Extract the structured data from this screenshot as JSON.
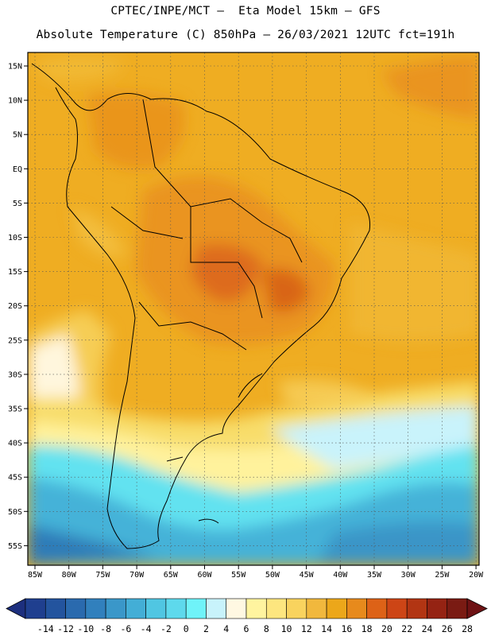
{
  "header": {
    "line1": "CPTEC/INPE/MCT –  Eta Model 15km – GFS",
    "line2": "Absolute Temperature (C) 850hPa – 26/03/2021 12UTC fct=191h"
  },
  "map": {
    "lat_labels": [
      "15N",
      "10N",
      "5N",
      "EQ",
      "5S",
      "10S",
      "15S",
      "20S",
      "25S",
      "30S",
      "35S",
      "40S",
      "45S",
      "50S",
      "55S"
    ],
    "lon_labels": [
      "85W",
      "80W",
      "75W",
      "70W",
      "65W",
      "60W",
      "55W",
      "50W",
      "45W",
      "40W",
      "35W",
      "30W",
      "25W",
      "20W"
    ]
  },
  "colorbar": {
    "labels": [
      "-14",
      "-12",
      "-10",
      "-8",
      "-6",
      "-4",
      "-2",
      "0",
      "2",
      "4",
      "6",
      "8",
      "10",
      "12",
      "14",
      "16",
      "18",
      "20",
      "22",
      "24",
      "26",
      "28"
    ],
    "colors": [
      "#1f3f8f",
      "#23549e",
      "#2a6aae",
      "#3180bd",
      "#3a97c9",
      "#43aed6",
      "#50c6e2",
      "#5ed9ec",
      "#6ff3f9",
      "#c8f3fb",
      "#fff8e2",
      "#fff49f",
      "#fde67f",
      "#f9d35e",
      "#f1b83d",
      "#eca71a",
      "#e78a1c",
      "#dd6217",
      "#cd4516",
      "#b23513",
      "#952313",
      "#7a1b13"
    ],
    "under_color": "#1d2f7e",
    "over_color": "#6e1214"
  }
}
